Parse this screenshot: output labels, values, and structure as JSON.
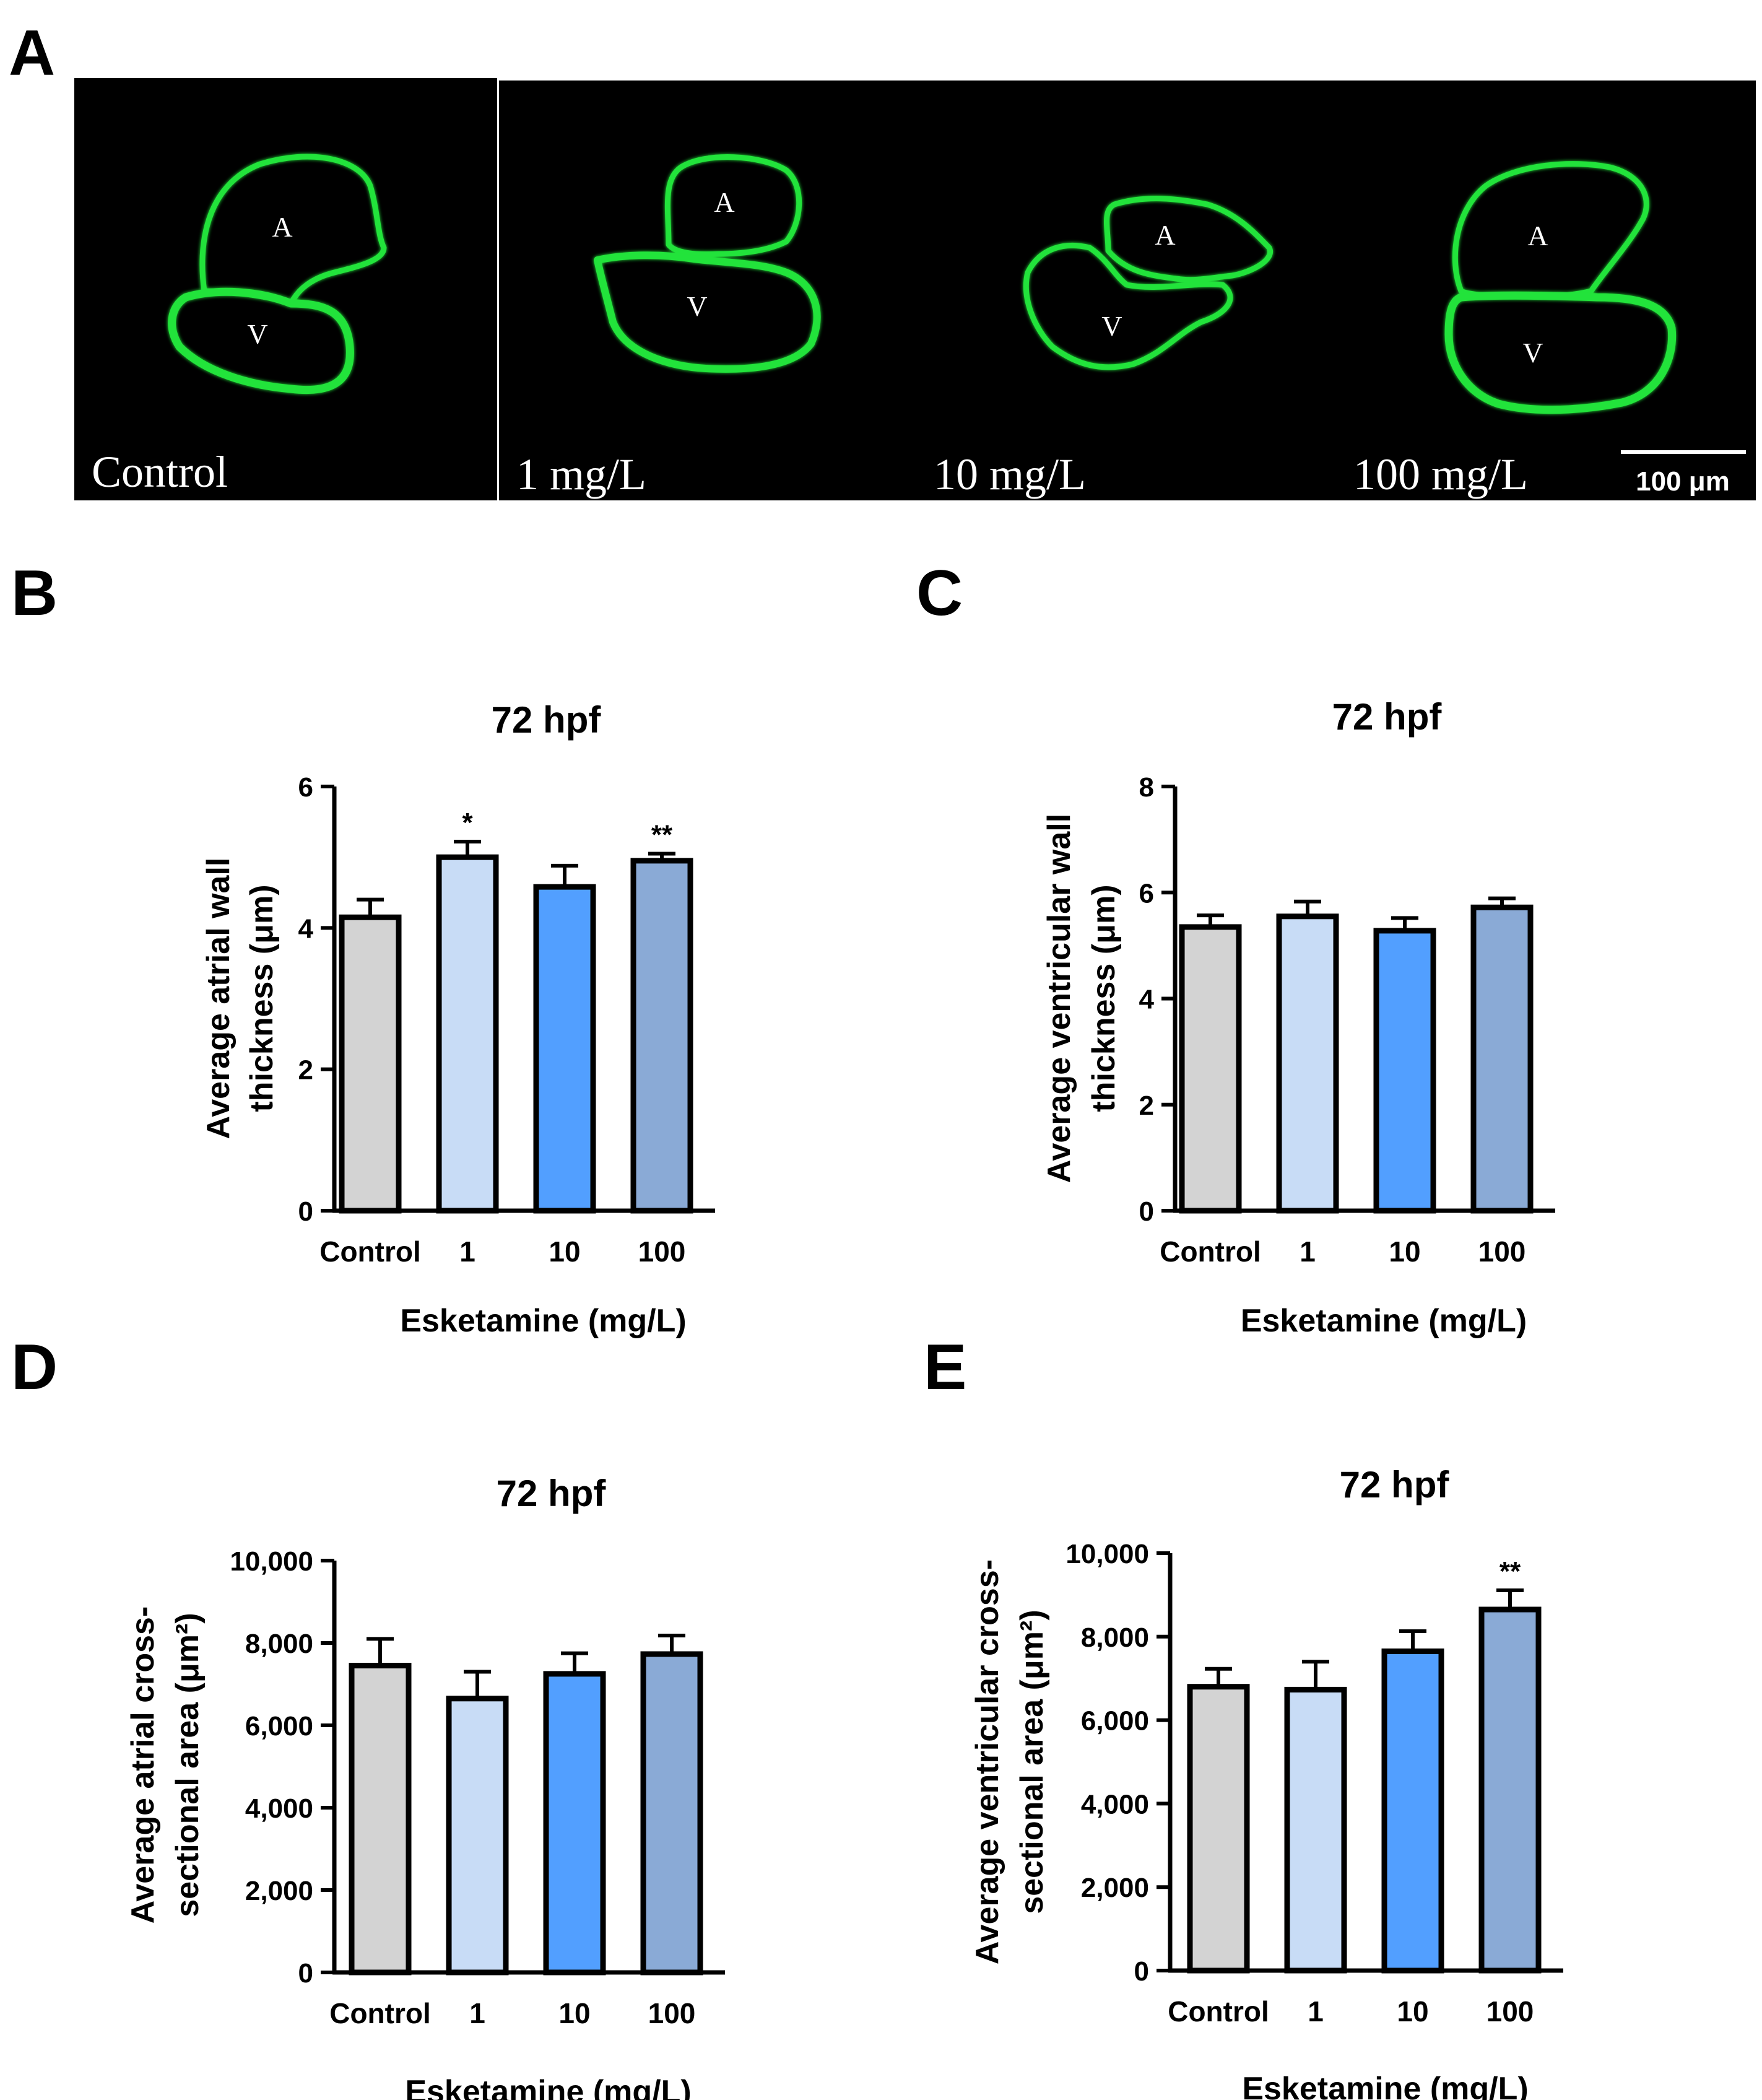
{
  "panel_letters": {
    "a": "A",
    "b": "B",
    "c": "C",
    "d": "D",
    "e": "E"
  },
  "micrograph": {
    "panels": [
      {
        "label": "Control",
        "atrium": "A",
        "ventricle": "V"
      },
      {
        "label": "1 mg/L",
        "atrium": "A",
        "ventricle": "V"
      },
      {
        "label": "10 mg/L",
        "atrium": "A",
        "ventricle": "V"
      },
      {
        "label": "100 mg/L",
        "atrium": "A",
        "ventricle": "V"
      }
    ],
    "scale_bar": "100 μm",
    "colors": {
      "background": "#000000",
      "stain": "#22e33a"
    }
  },
  "chart_data": [
    {
      "panel": "B",
      "type": "bar",
      "title": "72 hpf",
      "xlabel": "Esketamine (mg/L)",
      "ylabel": [
        "Average atrial wall",
        "thickness (μm)"
      ],
      "categories": [
        "Control",
        "1",
        "10",
        "100"
      ],
      "values": [
        4.15,
        5.0,
        4.58,
        4.95
      ],
      "errors": [
        0.25,
        0.22,
        0.3,
        0.1
      ],
      "significance": [
        "",
        "*",
        "",
        "**"
      ],
      "ylim": [
        0,
        6
      ],
      "yticks": [
        0,
        2,
        4,
        6
      ],
      "ytick_labels": [
        "0",
        "2",
        "4",
        "6"
      ],
      "colors": [
        "#d3d3d3",
        "#c8dcf6",
        "#529fff",
        "#8aaad6"
      ]
    },
    {
      "panel": "C",
      "type": "bar",
      "title": "72 hpf",
      "xlabel": "Esketamine (mg/L)",
      "ylabel": [
        "Average ventricular wall",
        "thickness (μm)"
      ],
      "categories": [
        "Control",
        "1",
        "10",
        "100"
      ],
      "values": [
        5.35,
        5.55,
        5.28,
        5.72
      ],
      "errors": [
        0.22,
        0.28,
        0.24,
        0.17
      ],
      "significance": [
        "",
        "",
        "",
        ""
      ],
      "ylim": [
        0,
        8
      ],
      "yticks": [
        0,
        2,
        4,
        6,
        8
      ],
      "ytick_labels": [
        "0",
        "2",
        "4",
        "6",
        "8"
      ],
      "colors": [
        "#d3d3d3",
        "#c8dcf6",
        "#529fff",
        "#8aaad6"
      ]
    },
    {
      "panel": "D",
      "type": "bar",
      "title": "72 hpf",
      "xlabel": "Esketamine (mg/L)",
      "ylabel": [
        "Average atrial cross-",
        "sectional area (μm²)"
      ],
      "categories": [
        "Control",
        "1",
        "10",
        "100"
      ],
      "values": [
        7450,
        6650,
        7250,
        7730
      ],
      "errors": [
        650,
        650,
        500,
        450
      ],
      "significance": [
        "",
        "",
        "",
        ""
      ],
      "ylim": [
        0,
        10000
      ],
      "yticks": [
        0,
        2000,
        4000,
        6000,
        8000,
        10000
      ],
      "ytick_labels": [
        "0",
        "2,000",
        "4,000",
        "6,000",
        "8,000",
        "10,000"
      ],
      "colors": [
        "#d3d3d3",
        "#c8dcf6",
        "#529fff",
        "#8aaad6"
      ]
    },
    {
      "panel": "E",
      "type": "bar",
      "title": "72 hpf",
      "xlabel": "Esketamine (mg/L)",
      "ylabel": [
        "Average ventricular cross-",
        "sectional area (μm²)"
      ],
      "categories": [
        "Control",
        "1",
        "10",
        "100"
      ],
      "values": [
        6800,
        6730,
        7650,
        8650
      ],
      "errors": [
        430,
        670,
        480,
        460
      ],
      "significance": [
        "",
        "",
        "",
        "**"
      ],
      "ylim": [
        0,
        10000
      ],
      "yticks": [
        0,
        2000,
        4000,
        6000,
        8000,
        10000
      ],
      "ytick_labels": [
        "0",
        "2,000",
        "4,000",
        "6,000",
        "8,000",
        "10,000"
      ],
      "colors": [
        "#d3d3d3",
        "#c8dcf6",
        "#529fff",
        "#8aaad6"
      ]
    }
  ]
}
